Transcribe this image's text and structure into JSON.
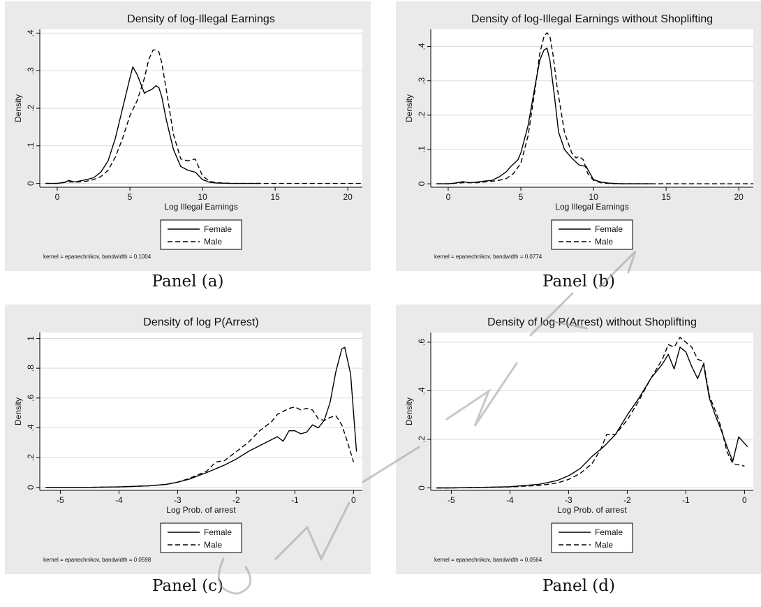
{
  "panels": [
    {
      "caption": "Panel (a)"
    },
    {
      "caption": "Panel (b)"
    },
    {
      "caption": "Panel (c)"
    },
    {
      "caption": "Panel (d)"
    }
  ],
  "colors": {
    "frame_bg": "#eaeaea",
    "plot_bg": "#ffffff",
    "grid": "#d9d9d9",
    "line": "#000000",
    "watermark": "#9a9a9a"
  },
  "chart_data": [
    {
      "type": "line",
      "title": "Density of log-Illegal Earnings",
      "xlabel": "Log Illegal Earnings",
      "ylabel": "Density",
      "xlim": [
        -1.2,
        21
      ],
      "ylim": [
        -0.01,
        0.41
      ],
      "xticks": [
        0,
        5,
        10,
        15,
        20
      ],
      "xtick_labels": [
        "0",
        "5",
        "10",
        "15",
        "20"
      ],
      "yticks": [
        0,
        0.1,
        0.2,
        0.3,
        0.4
      ],
      "ytick_labels": [
        "0",
        ".1",
        ".2",
        ".3",
        ".4"
      ],
      "grid": true,
      "legend_placement": "bottom",
      "note": "kernel = epanechnikov, bandwidth = 0.1004",
      "series": [
        {
          "name": "Female",
          "style": "solid",
          "x": [
            -0.8,
            0,
            0.5,
            0.8,
            1.2,
            2,
            2.5,
            3,
            3.5,
            4,
            4.5,
            5,
            5.2,
            5.5,
            5.8,
            6,
            6.2,
            6.5,
            6.8,
            7,
            7.2,
            7.5,
            8,
            8.5,
            9,
            9.5,
            10,
            10.5,
            11,
            12,
            14
          ],
          "y": [
            0,
            0,
            0.003,
            0.008,
            0.004,
            0.01,
            0.015,
            0.03,
            0.06,
            0.12,
            0.2,
            0.28,
            0.31,
            0.29,
            0.26,
            0.24,
            0.245,
            0.25,
            0.26,
            0.255,
            0.23,
            0.17,
            0.09,
            0.045,
            0.035,
            0.03,
            0.01,
            0.003,
            0.001,
            0,
            0
          ]
        },
        {
          "name": "Male",
          "style": "dashed",
          "x": [
            -0.8,
            0,
            0.8,
            1.5,
            2,
            2.5,
            3,
            3.5,
            4,
            4.5,
            5,
            5.5,
            6,
            6.3,
            6.6,
            6.8,
            7,
            7.2,
            7.5,
            8,
            8.5,
            9,
            9.5,
            10,
            10.5,
            11,
            12,
            14,
            16,
            18,
            21
          ],
          "y": [
            0,
            0,
            0.004,
            0.004,
            0.006,
            0.01,
            0.018,
            0.035,
            0.07,
            0.12,
            0.18,
            0.22,
            0.28,
            0.33,
            0.355,
            0.355,
            0.35,
            0.32,
            0.25,
            0.13,
            0.065,
            0.06,
            0.065,
            0.02,
            0.005,
            0.002,
            0,
            0,
            0,
            0,
            0
          ]
        }
      ]
    },
    {
      "type": "line",
      "title": "Density of log-Illegal Earnings without Shoplifting",
      "xlabel": "Log Illegal Earnings",
      "ylabel": "Density",
      "xlim": [
        -1.2,
        21
      ],
      "ylim": [
        -0.01,
        0.45
      ],
      "xticks": [
        0,
        5,
        10,
        15,
        20
      ],
      "xtick_labels": [
        "0",
        "5",
        "10",
        "15",
        "20"
      ],
      "yticks": [
        0,
        0.1,
        0.2,
        0.3,
        0.4
      ],
      "ytick_labels": [
        "0",
        ".1",
        ".2",
        ".3",
        ".4"
      ],
      "grid": true,
      "legend_placement": "bottom",
      "note": "kernel = epanechnikov, bandwidth = 0.0774",
      "series": [
        {
          "name": "Female",
          "style": "solid",
          "x": [
            -0.8,
            0,
            0.5,
            1,
            1.5,
            2,
            2.5,
            3,
            3.5,
            4,
            4.3,
            4.8,
            5,
            5.5,
            6,
            6.3,
            6.6,
            6.8,
            7,
            7.3,
            7.6,
            8,
            8.5,
            9,
            9.5,
            10,
            10.5,
            11,
            12,
            14
          ],
          "y": [
            0,
            0,
            0.002,
            0.006,
            0.003,
            0.005,
            0.008,
            0.01,
            0.02,
            0.035,
            0.05,
            0.07,
            0.09,
            0.17,
            0.29,
            0.36,
            0.39,
            0.395,
            0.36,
            0.26,
            0.15,
            0.1,
            0.075,
            0.055,
            0.05,
            0.012,
            0.005,
            0.002,
            0,
            0
          ]
        },
        {
          "name": "Male",
          "style": "dashed",
          "x": [
            -0.8,
            0,
            1,
            2,
            2.5,
            3,
            3.5,
            4,
            4.5,
            5,
            5.5,
            6,
            6.3,
            6.6,
            6.8,
            7,
            7.2,
            7.5,
            8,
            8.5,
            8.8,
            9,
            9.3,
            9.6,
            10,
            10.5,
            11,
            12,
            14,
            16,
            18,
            21
          ],
          "y": [
            0,
            0,
            0.003,
            0.003,
            0.005,
            0.007,
            0.01,
            0.015,
            0.03,
            0.06,
            0.14,
            0.28,
            0.38,
            0.43,
            0.44,
            0.43,
            0.38,
            0.28,
            0.15,
            0.09,
            0.075,
            0.08,
            0.07,
            0.03,
            0.01,
            0.003,
            0.001,
            0,
            0,
            0,
            0,
            0
          ]
        }
      ]
    },
    {
      "type": "line",
      "title": "Density of log P(Arrest)",
      "xlabel": "Log Prob. of arrest",
      "ylabel": "Density",
      "xlim": [
        -5.35,
        0.15
      ],
      "ylim": [
        -0.02,
        1.04
      ],
      "xticks": [
        -5,
        -4,
        -3,
        -2,
        -1,
        0
      ],
      "xtick_labels": [
        "-5",
        "-4",
        "-3",
        "-2",
        "-1",
        "0"
      ],
      "yticks": [
        0,
        0.2,
        0.4,
        0.6,
        0.8,
        1
      ],
      "ytick_labels": [
        "0",
        ".2",
        ".4",
        ".6",
        ".8",
        "1"
      ],
      "grid": true,
      "legend_placement": "bottom",
      "note": "kernel = epanechnikov, bandwidth = 0.0598",
      "series": [
        {
          "name": "Female",
          "style": "solid",
          "x": [
            -5.25,
            -5,
            -4.5,
            -4,
            -3.5,
            -3.2,
            -3,
            -2.8,
            -2.5,
            -2.2,
            -2,
            -1.8,
            -1.6,
            -1.4,
            -1.3,
            -1.2,
            -1.1,
            -1,
            -0.9,
            -0.8,
            -0.7,
            -0.6,
            -0.5,
            -0.4,
            -0.3,
            -0.2,
            -0.15,
            -0.05,
            0.05
          ],
          "y": [
            0,
            0,
            0,
            0.003,
            0.01,
            0.02,
            0.035,
            0.055,
            0.1,
            0.15,
            0.19,
            0.24,
            0.28,
            0.32,
            0.34,
            0.31,
            0.38,
            0.38,
            0.36,
            0.37,
            0.42,
            0.4,
            0.45,
            0.57,
            0.78,
            0.93,
            0.94,
            0.76,
            0.24
          ]
        },
        {
          "name": "Male",
          "style": "dashed",
          "x": [
            -5.25,
            -5,
            -4.5,
            -4,
            -3.5,
            -3.2,
            -3,
            -2.8,
            -2.5,
            -2.35,
            -2.2,
            -2,
            -1.8,
            -1.6,
            -1.4,
            -1.3,
            -1.2,
            -1.1,
            -1,
            -0.9,
            -0.8,
            -0.7,
            -0.6,
            -0.5,
            -0.4,
            -0.3,
            -0.2,
            -0.1,
            0
          ],
          "y": [
            0,
            0,
            0,
            0.003,
            0.01,
            0.02,
            0.035,
            0.06,
            0.11,
            0.17,
            0.18,
            0.24,
            0.3,
            0.38,
            0.44,
            0.49,
            0.51,
            0.53,
            0.54,
            0.52,
            0.53,
            0.52,
            0.46,
            0.45,
            0.47,
            0.48,
            0.42,
            0.3,
            0.17
          ]
        }
      ]
    },
    {
      "type": "line",
      "title": "Density of log P(Arrest) without Shoplifting",
      "xlabel": "Log Prob. of arrest",
      "ylabel": "Density",
      "xlim": [
        -5.35,
        0.15
      ],
      "ylim": [
        -0.01,
        0.64
      ],
      "xticks": [
        -5,
        -4,
        -3,
        -2,
        -1,
        0
      ],
      "xtick_labels": [
        "-5",
        "-4",
        "-3",
        "-2",
        "-1",
        "0"
      ],
      "yticks": [
        0,
        0.2,
        0.4,
        0.6
      ],
      "ytick_labels": [
        "0",
        ".2",
        ".4",
        ".6"
      ],
      "grid": true,
      "legend_placement": "bottom",
      "note": "kernel = epanechnikov, bandwidth = 0.0564",
      "series": [
        {
          "name": "Female",
          "style": "solid",
          "x": [
            -5.25,
            -5,
            -4.5,
            -4,
            -3.5,
            -3.2,
            -3,
            -2.8,
            -2.6,
            -2.4,
            -2.2,
            -2,
            -1.8,
            -1.6,
            -1.4,
            -1.3,
            -1.2,
            -1.1,
            -1,
            -0.9,
            -0.8,
            -0.7,
            -0.6,
            -0.5,
            -0.4,
            -0.3,
            -0.2,
            -0.1,
            0.05
          ],
          "y": [
            0,
            0,
            0.002,
            0.005,
            0.015,
            0.03,
            0.05,
            0.08,
            0.13,
            0.17,
            0.22,
            0.3,
            0.37,
            0.45,
            0.51,
            0.55,
            0.49,
            0.58,
            0.56,
            0.5,
            0.45,
            0.51,
            0.37,
            0.3,
            0.24,
            0.17,
            0.11,
            0.21,
            0.17
          ]
        },
        {
          "name": "Male",
          "style": "dashed",
          "x": [
            -5.25,
            -5,
            -4.5,
            -4,
            -3.5,
            -3.2,
            -3,
            -2.8,
            -2.6,
            -2.45,
            -2.35,
            -2.2,
            -2,
            -1.8,
            -1.6,
            -1.4,
            -1.3,
            -1.2,
            -1.1,
            -1,
            -0.9,
            -0.8,
            -0.7,
            -0.6,
            -0.5,
            -0.4,
            -0.3,
            -0.2,
            -0.1,
            0
          ],
          "y": [
            0,
            0,
            0.002,
            0.004,
            0.01,
            0.02,
            0.035,
            0.06,
            0.1,
            0.16,
            0.22,
            0.22,
            0.28,
            0.36,
            0.45,
            0.53,
            0.59,
            0.58,
            0.62,
            0.6,
            0.58,
            0.53,
            0.52,
            0.38,
            0.32,
            0.25,
            0.15,
            0.1,
            0.095,
            0.09
          ]
        }
      ]
    }
  ]
}
